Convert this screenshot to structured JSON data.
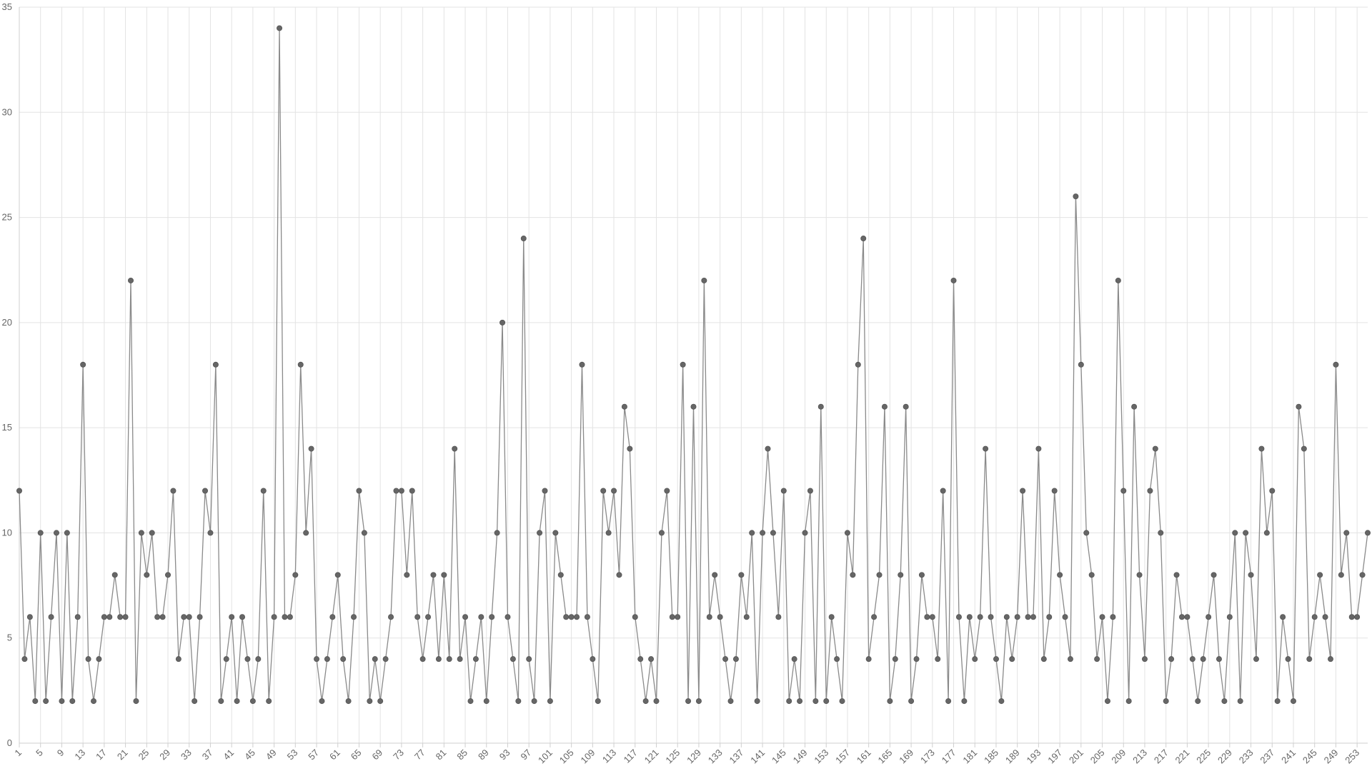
{
  "chart_data": {
    "type": "line",
    "title": "",
    "xlabel": "",
    "ylabel": "",
    "x_start": 1,
    "x_end": 254,
    "xtick_labels": [
      "1",
      "5",
      "9",
      "13",
      "17",
      "21",
      "25",
      "29",
      "33",
      "37",
      "41",
      "45",
      "49",
      "53",
      "57",
      "61",
      "65",
      "69",
      "73",
      "77",
      "81",
      "85",
      "89",
      "93",
      "97",
      "101",
      "105",
      "109",
      "113",
      "117",
      "121",
      "125",
      "129",
      "133",
      "137",
      "141",
      "145",
      "149",
      "153",
      "157",
      "161",
      "165",
      "169",
      "173",
      "177",
      "181",
      "185",
      "189",
      "193",
      "197",
      "201",
      "205",
      "209",
      "213",
      "217",
      "221",
      "225",
      "229",
      "233",
      "237",
      "241",
      "245",
      "249",
      "253"
    ],
    "ylim": [
      0,
      35
    ],
    "yticks": [
      0,
      5,
      10,
      15,
      20,
      25,
      30,
      35
    ],
    "grid": true,
    "legend": "none",
    "colors": {
      "line": "#8a8a8a",
      "point": "#666666",
      "grid": "#e3e3e3"
    },
    "series": [
      {
        "values": [
          12,
          4,
          6,
          2,
          10,
          2,
          6,
          10,
          2,
          10,
          2,
          6,
          18,
          4,
          2,
          4,
          6,
          6,
          8,
          6,
          6,
          22,
          2,
          10,
          8,
          10,
          6,
          6,
          8,
          12,
          4,
          6,
          6,
          2,
          6,
          12,
          10,
          18,
          2,
          4,
          6,
          2,
          6,
          4,
          2,
          4,
          12,
          2,
          6,
          34,
          6,
          6,
          8,
          18,
          10,
          14,
          4,
          2,
          4,
          6,
          8,
          4,
          2,
          6,
          12,
          10,
          2,
          4,
          2,
          4,
          6,
          12,
          12,
          8,
          12,
          6,
          4,
          6,
          8,
          4,
          8,
          4,
          14,
          4,
          6,
          2,
          4,
          6,
          2,
          6,
          10,
          20,
          6,
          4,
          2,
          24,
          4,
          2,
          10,
          12,
          2,
          10,
          8,
          6,
          6,
          6,
          18,
          6,
          4,
          2,
          12,
          10,
          12,
          8,
          16,
          14,
          6,
          4,
          2,
          4,
          2,
          10,
          12,
          6,
          6,
          18,
          2,
          16,
          2,
          22,
          6,
          8,
          6,
          4,
          2,
          4,
          8,
          6,
          10,
          2,
          10,
          14,
          10,
          6,
          12,
          2,
          4,
          2,
          10,
          12,
          2,
          16,
          2,
          6,
          4,
          2,
          10,
          8,
          18,
          24,
          4,
          6,
          8,
          16,
          2,
          4,
          8,
          16,
          2,
          4,
          8,
          6,
          6,
          4,
          12,
          2,
          22,
          6,
          2,
          6,
          4,
          6,
          14,
          6,
          4,
          2,
          6,
          4,
          6,
          12,
          6,
          6,
          14,
          4,
          6,
          12,
          8,
          6,
          4,
          26,
          18,
          10,
          8,
          4,
          6,
          2,
          6,
          22,
          12,
          2,
          16,
          8,
          4,
          12,
          14,
          10,
          2,
          4,
          8,
          6,
          6,
          4,
          2,
          4,
          6,
          8,
          4,
          2,
          6,
          10,
          2,
          10,
          8,
          4,
          14,
          10,
          12,
          2,
          6,
          4,
          2,
          16,
          14,
          4,
          6,
          8,
          6,
          4,
          18,
          8,
          10,
          6,
          6,
          8,
          10
        ]
      }
    ]
  }
}
